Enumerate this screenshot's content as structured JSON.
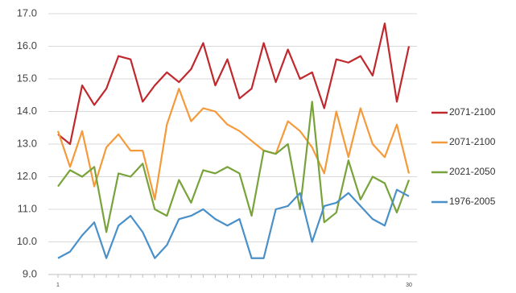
{
  "chart_data": {
    "type": "line",
    "categories": [
      "1",
      null,
      null,
      null,
      null,
      null,
      null,
      null,
      null,
      null,
      null,
      null,
      null,
      null,
      null,
      null,
      null,
      null,
      null,
      null,
      null,
      null,
      null,
      null,
      null,
      null,
      null,
      null,
      null,
      "30"
    ],
    "series": [
      {
        "name": "2071-2100",
        "color": "#c0282d",
        "values": [
          13.3,
          13.0,
          14.8,
          14.2,
          14.7,
          15.7,
          15.6,
          14.3,
          14.8,
          15.2,
          14.9,
          15.3,
          16.1,
          14.8,
          15.6,
          14.4,
          14.7,
          16.1,
          14.9,
          15.9,
          15.0,
          15.2,
          14.1,
          15.6,
          15.5,
          15.7,
          15.1,
          16.7,
          14.3,
          16.0
        ]
      },
      {
        "name": "2071-2100",
        "color": "#f59a3a",
        "values": [
          13.4,
          12.3,
          13.4,
          11.7,
          12.9,
          13.3,
          12.8,
          12.8,
          11.3,
          13.6,
          14.7,
          13.7,
          14.1,
          14.0,
          13.6,
          13.4,
          13.1,
          12.8,
          12.7,
          13.7,
          13.4,
          12.9,
          12.1,
          14.0,
          12.6,
          14.1,
          13.0,
          12.6,
          13.6,
          12.1
        ]
      },
      {
        "name": "2021-2050",
        "color": "#77a33a",
        "values": [
          11.7,
          12.2,
          12.0,
          12.3,
          10.3,
          12.1,
          12.0,
          12.4,
          11.0,
          10.8,
          11.9,
          11.2,
          12.2,
          12.1,
          12.3,
          12.1,
          10.8,
          12.8,
          12.7,
          13.0,
          11.0,
          14.3,
          10.6,
          10.9,
          12.5,
          11.3,
          12.0,
          11.8,
          10.9,
          11.9
        ]
      },
      {
        "name": "1976-2005",
        "color": "#4a90c8",
        "values": [
          9.5,
          9.7,
          10.2,
          10.6,
          9.5,
          10.5,
          10.8,
          10.3,
          9.5,
          9.9,
          10.7,
          10.8,
          11.0,
          10.7,
          10.5,
          10.7,
          9.5,
          9.5,
          11.0,
          11.1,
          11.5,
          10.0,
          11.1,
          11.2,
          11.5,
          11.1,
          10.7,
          10.5,
          11.6,
          11.4
        ]
      }
    ],
    "ylim": [
      9,
      17
    ],
    "yticks": [
      {
        "value": 9,
        "label": "9.0"
      },
      {
        "value": 10,
        "label": "10.0"
      },
      {
        "value": 11,
        "label": "11.0"
      },
      {
        "value": 12,
        "label": "12.0"
      },
      {
        "value": 13,
        "label": "13.0"
      },
      {
        "value": 14,
        "label": "14.0"
      },
      {
        "value": 15,
        "label": "15.0"
      },
      {
        "value": 16,
        "label": "16.0"
      },
      {
        "value": 17,
        "label": "17.0"
      }
    ],
    "grid": true,
    "legend": "right"
  }
}
